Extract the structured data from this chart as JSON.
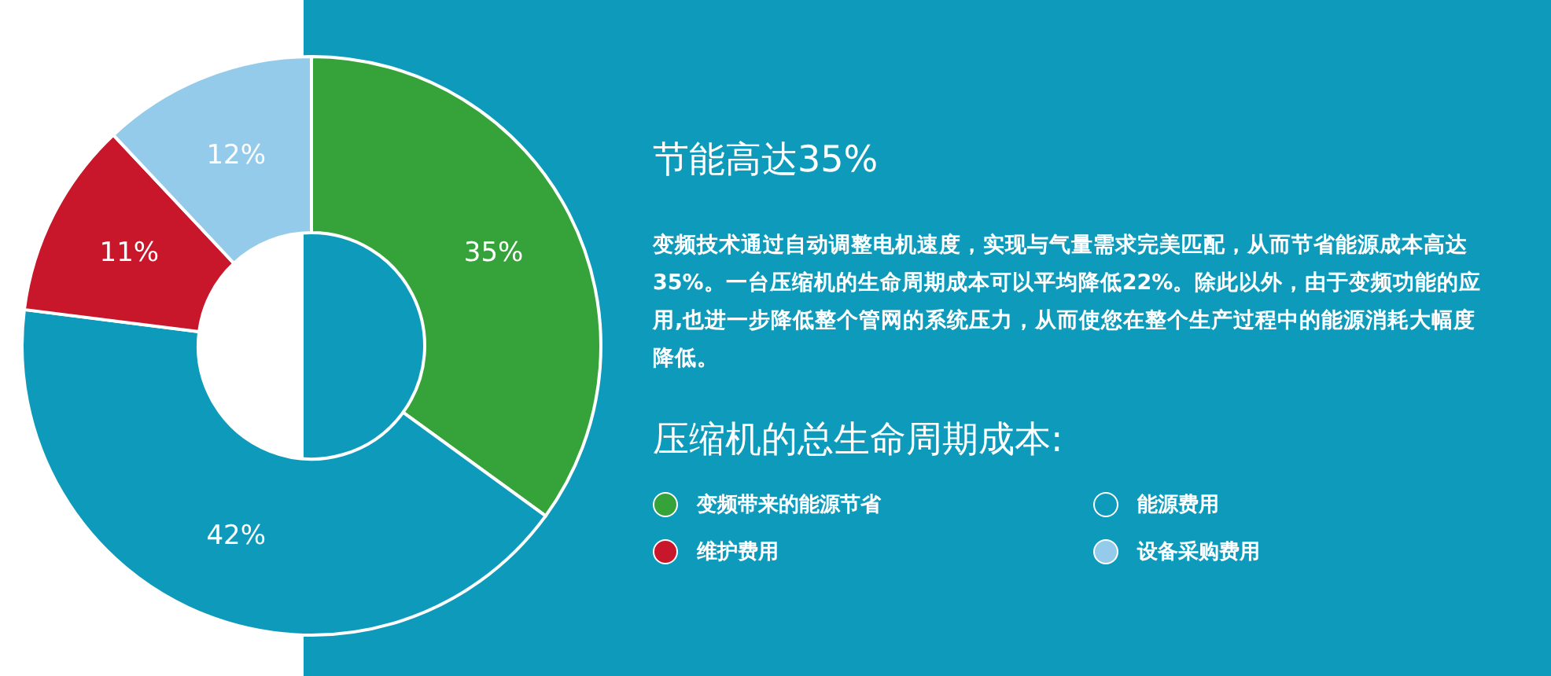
{
  "chart_data": {
    "type": "donut",
    "title": "节能高达35%",
    "subtitle": "变频技术通过自动调整电机速度，实现与气量需求完美匹配，从而节省能源成本高达35%。一台压缩机的生命周期成本可以平均降低22%。除此以外，由于变频功能的应用,也进一步降低整个管网的系统压力，从而使您在整个生产过程中的能源消耗大幅度降低。",
    "legend_title": "压缩机的总生命周期成本:",
    "categories": [
      "变频带来的能源节省",
      "能源费用",
      "维护费用",
      "设备采购费用"
    ],
    "values": [
      35,
      42,
      11,
      12
    ],
    "colors": [
      "#35a23a",
      "#0e9bbb",
      "#c8172b",
      "#94cbeb"
    ],
    "value_labels": [
      "35%",
      "42%",
      "11%",
      "12%"
    ],
    "legend": "right"
  }
}
